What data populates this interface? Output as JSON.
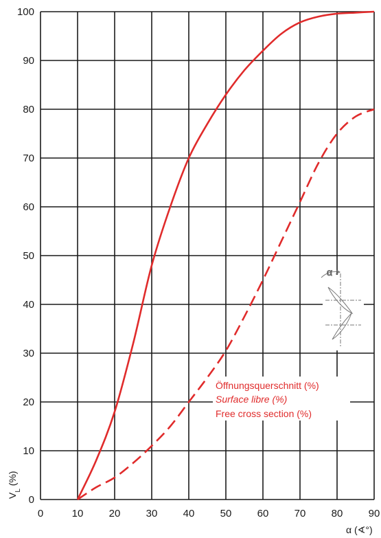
{
  "chart_data": {
    "type": "line",
    "xlabel": "α (∢°)",
    "ylabel": "V",
    "ylabel_sub": "L",
    "ylabel_unit": " (%)",
    "xlim": [
      0,
      90
    ],
    "ylim": [
      0,
      100
    ],
    "x_ticks": [
      0,
      10,
      20,
      30,
      40,
      50,
      60,
      70,
      80,
      90
    ],
    "y_ticks": [
      0,
      10,
      20,
      30,
      40,
      50,
      60,
      70,
      80,
      90,
      100
    ],
    "grid": true,
    "series": [
      {
        "style": "solid",
        "color": "#e02b2b",
        "x": [
          10,
          15,
          20,
          25,
          30,
          35,
          40,
          45,
          50,
          55,
          60,
          65,
          70,
          75,
          80,
          85,
          90
        ],
        "y": [
          0,
          8,
          18,
          32,
          48,
          60,
          70,
          77,
          83,
          88,
          92,
          95.5,
          97.8,
          99,
          99.6,
          99.8,
          100
        ]
      },
      {
        "style": "dashed",
        "color": "#e02b2b",
        "x": [
          10,
          15,
          20,
          25,
          30,
          35,
          40,
          45,
          50,
          55,
          60,
          65,
          70,
          75,
          80,
          85,
          90
        ],
        "y": [
          0,
          2.5,
          4.5,
          7.5,
          11,
          15,
          20,
          25,
          30.5,
          37.5,
          45,
          53,
          61,
          69,
          75,
          78.5,
          80
        ]
      }
    ],
    "annotation": {
      "lines": [
        "Öffnungsquerschnitt (%)",
        "Surface libre (%)",
        "Free cross section (%)"
      ],
      "inset_label": "α"
    }
  }
}
